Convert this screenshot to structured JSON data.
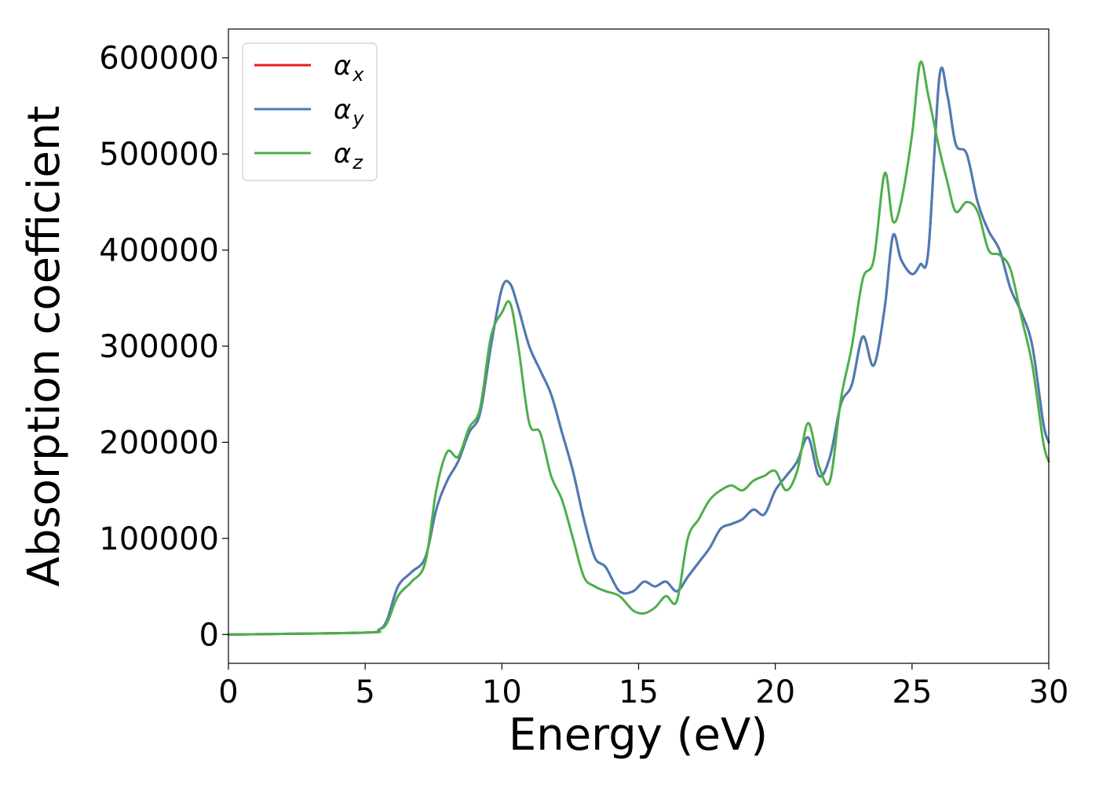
{
  "chart_data": {
    "type": "line",
    "title": "",
    "xlabel": "Energy (eV)",
    "ylabel": "Absorption coefficient",
    "xlim": [
      0,
      30
    ],
    "ylim": [
      -30000,
      630000
    ],
    "xticks": [
      0,
      5,
      10,
      15,
      20,
      25,
      30
    ],
    "xtick_labels": [
      "0",
      "5",
      "10",
      "15",
      "20",
      "25",
      "30"
    ],
    "yticks": [
      0,
      100000,
      200000,
      300000,
      400000,
      500000,
      600000
    ],
    "ytick_labels": [
      "0",
      "100000",
      "200000",
      "300000",
      "400000",
      "500000",
      "600000"
    ],
    "grid": false,
    "legend_position": "top-left",
    "series": [
      {
        "name": "αx",
        "symbol": "α",
        "subscript": "x",
        "color": "#e41a1c",
        "x": [
          0,
          5,
          5.5,
          5.8,
          6.2,
          6.7,
          7.2,
          7.6,
          8.0,
          8.4,
          8.8,
          9.2,
          9.6,
          10.0,
          10.3,
          10.6,
          11.0,
          11.4,
          11.8,
          12.2,
          12.6,
          13.0,
          13.4,
          13.8,
          14.3,
          14.8,
          15.2,
          15.6,
          16.0,
          16.4,
          16.8,
          17.2,
          17.6,
          18.0,
          18.4,
          18.8,
          19.2,
          19.6,
          20.0,
          20.4,
          20.8,
          21.2,
          21.6,
          22.0,
          22.4,
          22.8,
          23.2,
          23.6,
          24.0,
          24.3,
          24.6,
          25.0,
          25.3,
          25.6,
          26.0,
          26.3,
          26.6,
          27.0,
          27.4,
          27.8,
          28.2,
          28.6,
          29.0,
          29.4,
          29.8,
          30.0
        ],
        "y": [
          0,
          2000,
          5000,
          15000,
          50000,
          65000,
          80000,
          130000,
          160000,
          180000,
          210000,
          230000,
          300000,
          360000,
          365000,
          340000,
          300000,
          275000,
          250000,
          210000,
          170000,
          120000,
          80000,
          70000,
          45000,
          45000,
          55000,
          50000,
          55000,
          45000,
          60000,
          75000,
          90000,
          110000,
          115000,
          120000,
          130000,
          125000,
          150000,
          165000,
          180000,
          205000,
          165000,
          185000,
          240000,
          260000,
          310000,
          280000,
          340000,
          415000,
          390000,
          375000,
          385000,
          400000,
          580000,
          560000,
          510000,
          500000,
          450000,
          420000,
          400000,
          360000,
          335000,
          300000,
          220000,
          200000
        ]
      },
      {
        "name": "αy",
        "symbol": "α",
        "subscript": "y",
        "color": "#4a7cb8",
        "x": [
          0,
          5,
          5.5,
          5.8,
          6.2,
          6.7,
          7.2,
          7.6,
          8.0,
          8.4,
          8.8,
          9.2,
          9.6,
          10.0,
          10.3,
          10.6,
          11.0,
          11.4,
          11.8,
          12.2,
          12.6,
          13.0,
          13.4,
          13.8,
          14.3,
          14.8,
          15.2,
          15.6,
          16.0,
          16.4,
          16.8,
          17.2,
          17.6,
          18.0,
          18.4,
          18.8,
          19.2,
          19.6,
          20.0,
          20.4,
          20.8,
          21.2,
          21.6,
          22.0,
          22.4,
          22.8,
          23.2,
          23.6,
          24.0,
          24.3,
          24.6,
          25.0,
          25.3,
          25.6,
          26.0,
          26.3,
          26.6,
          27.0,
          27.4,
          27.8,
          28.2,
          28.6,
          29.0,
          29.4,
          29.8,
          30.0
        ],
        "y": [
          0,
          2000,
          5000,
          15000,
          50000,
          65000,
          80000,
          130000,
          160000,
          180000,
          210000,
          230000,
          300000,
          360000,
          365000,
          340000,
          300000,
          275000,
          250000,
          210000,
          170000,
          120000,
          80000,
          70000,
          45000,
          45000,
          55000,
          50000,
          55000,
          45000,
          60000,
          75000,
          90000,
          110000,
          115000,
          120000,
          130000,
          125000,
          150000,
          165000,
          180000,
          205000,
          165000,
          185000,
          240000,
          260000,
          310000,
          280000,
          340000,
          415000,
          390000,
          375000,
          385000,
          400000,
          580000,
          560000,
          510000,
          500000,
          450000,
          420000,
          400000,
          360000,
          335000,
          300000,
          220000,
          200000
        ]
      },
      {
        "name": "αz",
        "symbol": "α",
        "subscript": "z",
        "color": "#4daf4a",
        "x": [
          0,
          5,
          5.5,
          5.8,
          6.2,
          6.7,
          7.2,
          7.6,
          8.0,
          8.4,
          8.8,
          9.2,
          9.6,
          10.0,
          10.3,
          10.6,
          11.0,
          11.4,
          11.8,
          12.2,
          12.6,
          13.0,
          13.4,
          13.8,
          14.3,
          14.8,
          15.2,
          15.6,
          16.0,
          16.4,
          16.8,
          17.2,
          17.6,
          18.0,
          18.4,
          18.8,
          19.2,
          19.6,
          20.0,
          20.4,
          20.8,
          21.2,
          21.6,
          22.0,
          22.4,
          22.8,
          23.2,
          23.6,
          24.0,
          24.3,
          24.6,
          25.0,
          25.3,
          25.6,
          26.0,
          26.3,
          26.6,
          27.0,
          27.4,
          27.8,
          28.2,
          28.6,
          29.0,
          29.4,
          29.8,
          30.0
        ],
        "y": [
          0,
          2000,
          5000,
          12000,
          40000,
          55000,
          75000,
          150000,
          190000,
          185000,
          215000,
          235000,
          310000,
          335000,
          345000,
          300000,
          220000,
          210000,
          165000,
          140000,
          100000,
          60000,
          50000,
          45000,
          40000,
          25000,
          22000,
          28000,
          40000,
          35000,
          100000,
          120000,
          140000,
          150000,
          155000,
          150000,
          160000,
          165000,
          170000,
          150000,
          170000,
          220000,
          175000,
          160000,
          245000,
          300000,
          370000,
          390000,
          480000,
          430000,
          450000,
          520000,
          595000,
          560000,
          505000,
          470000,
          440000,
          450000,
          440000,
          400000,
          395000,
          380000,
          330000,
          280000,
          200000,
          180000
        ]
      }
    ]
  }
}
